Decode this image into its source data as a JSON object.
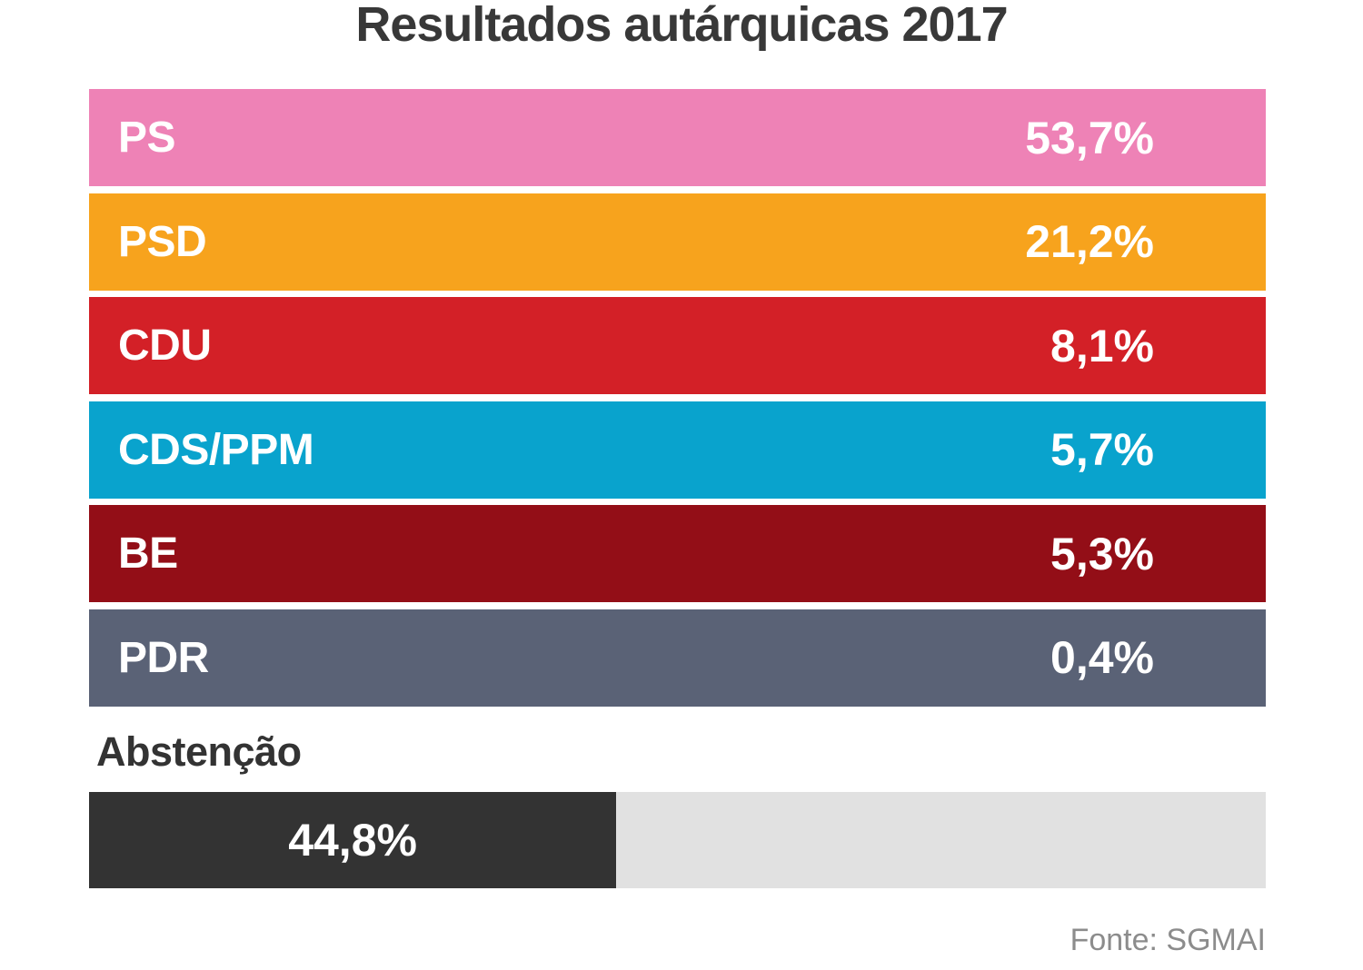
{
  "title": "Resultados autárquicas 2017",
  "parties": [
    {
      "name": "PS",
      "value": 53.7,
      "value_label": "53,7%",
      "color": "#ee82b6"
    },
    {
      "name": "PSD",
      "value": 21.2,
      "value_label": "21,2%",
      "color": "#f7a31d"
    },
    {
      "name": "CDU",
      "value": 8.1,
      "value_label": "8,1%",
      "color": "#d32027"
    },
    {
      "name": "CDS/PPM",
      "value": 5.7,
      "value_label": "5,7%",
      "color": "#09a3cd"
    },
    {
      "name": "BE",
      "value": 5.3,
      "value_label": "5,3%",
      "color": "#930e17"
    },
    {
      "name": "PDR",
      "value": 0.4,
      "value_label": "0,4%",
      "color": "#5a6276"
    }
  ],
  "abstention": {
    "label": "Abstenção",
    "value_pct": 44.8,
    "value_label": "44,8%",
    "fill_color": "#333333",
    "track_color": "#e1e1e1"
  },
  "footer": {
    "source": "Fonte: SGMAI"
  },
  "chart_data": {
    "type": "bar",
    "orientation": "horizontal",
    "title": "Resultados autárquicas 2017",
    "categories": [
      "PS",
      "PSD",
      "CDU",
      "CDS/PPM",
      "BE",
      "PDR"
    ],
    "values": [
      53.7,
      21.2,
      8.1,
      5.7,
      5.3,
      0.4
    ],
    "value_labels": [
      "53,7%",
      "21,2%",
      "8,1%",
      "5,7%",
      "5,3%",
      "0,4%"
    ],
    "colors": [
      "#ee82b6",
      "#f7a31d",
      "#d32027",
      "#09a3cd",
      "#930e17",
      "#5a6276"
    ],
    "abstention": {
      "label": "Abstenção",
      "value": 44.8,
      "value_label": "44,8%"
    },
    "source": "Fonte: SGMAI",
    "layout_hint": "party rows are full-width colored bands with in-bar value labels; only the abstention bar is proportional to its value"
  }
}
